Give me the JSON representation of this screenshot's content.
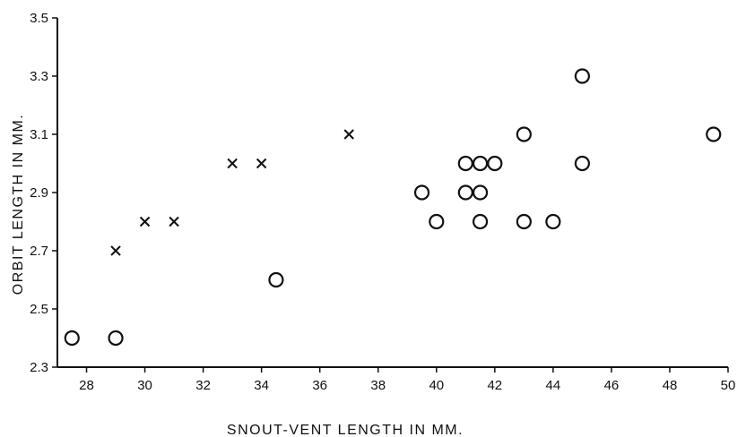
{
  "chart_data": {
    "type": "scatter",
    "xlabel": "SNOUT-VENT LENGTH IN MM.",
    "ylabel": "ORBIT LENGTH IN MM.",
    "xlim": [
      27,
      50
    ],
    "ylim": [
      2.3,
      3.5
    ],
    "x_ticks": [
      "28",
      "30",
      "32",
      "34",
      "36",
      "38",
      "40",
      "42",
      "44",
      "46",
      "48",
      "50"
    ],
    "y_ticks": [
      "2.3",
      "2.5",
      "2.7",
      "2.9",
      "3.1",
      "3.3",
      "3.5"
    ],
    "grid": false,
    "series": [
      {
        "marker": "x",
        "points": [
          {
            "x": 29,
            "y": 2.7
          },
          {
            "x": 30,
            "y": 2.8
          },
          {
            "x": 31,
            "y": 2.8
          },
          {
            "x": 33,
            "y": 3.0
          },
          {
            "x": 34,
            "y": 3.0
          },
          {
            "x": 37,
            "y": 3.1
          }
        ]
      },
      {
        "marker": "circle",
        "points": [
          {
            "x": 27.5,
            "y": 2.4
          },
          {
            "x": 29,
            "y": 2.4
          },
          {
            "x": 34.5,
            "y": 2.6
          },
          {
            "x": 39.5,
            "y": 2.9
          },
          {
            "x": 40,
            "y": 2.8
          },
          {
            "x": 41,
            "y": 2.9
          },
          {
            "x": 41,
            "y": 3.0
          },
          {
            "x": 41.5,
            "y": 3.0
          },
          {
            "x": 41.5,
            "y": 2.9
          },
          {
            "x": 41.5,
            "y": 2.8
          },
          {
            "x": 42,
            "y": 3.0
          },
          {
            "x": 43,
            "y": 3.1
          },
          {
            "x": 43,
            "y": 2.8
          },
          {
            "x": 44,
            "y": 2.8
          },
          {
            "x": 45,
            "y": 3.3
          },
          {
            "x": 45,
            "y": 3.0
          },
          {
            "x": 49.5,
            "y": 3.1
          }
        ]
      }
    ]
  }
}
